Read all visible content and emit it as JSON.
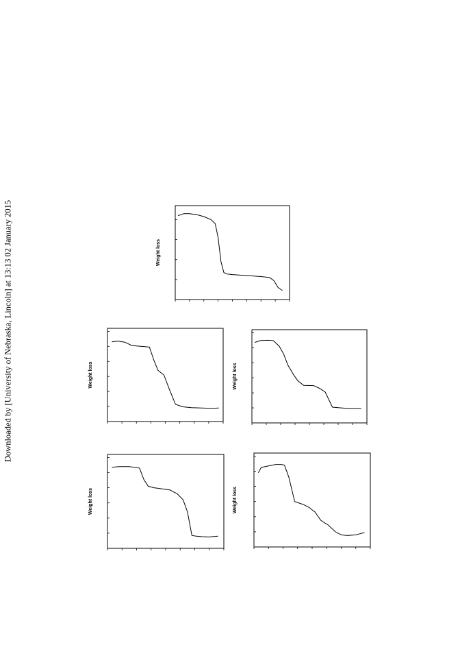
{
  "watermark": "Downloaded by [University of Nebraska, Lincoln] at 13:13 02 January 2015",
  "chart_data": [
    {
      "type": "line",
      "ylabel": "Weight loss",
      "xlabel": "",
      "xlim": [
        0,
        8
      ],
      "ylim": [
        0,
        4.7
      ],
      "x": [
        0.2,
        0.6,
        1.0,
        1.5,
        2.0,
        2.5,
        2.8,
        3.0,
        3.2,
        3.4,
        3.6,
        4.0,
        5.0,
        6.0,
        6.6,
        6.9,
        7.2,
        7.5
      ],
      "y": [
        4.2,
        4.3,
        4.3,
        4.25,
        4.15,
        4.0,
        3.8,
        3.1,
        1.9,
        1.35,
        1.28,
        1.25,
        1.2,
        1.15,
        1.1,
        0.95,
        0.6,
        0.45
      ]
    },
    {
      "type": "line",
      "ylabel": "Weight loss",
      "xlabel": "",
      "xlim": [
        0,
        8
      ],
      "ylim": [
        0,
        6.2
      ],
      "x": [
        0.3,
        0.7,
        1.2,
        1.7,
        2.3,
        2.9,
        3.2,
        3.5,
        3.9,
        4.3,
        4.7,
        5.2,
        5.8,
        6.5,
        7.2,
        7.7
      ],
      "y": [
        5.3,
        5.35,
        5.28,
        5.05,
        5.0,
        4.95,
        4.1,
        3.4,
        3.1,
        2.1,
        1.15,
        0.98,
        0.92,
        0.9,
        0.88,
        0.9
      ]
    },
    {
      "type": "line",
      "ylabel": "Weight loss",
      "xlabel": "",
      "xlim": [
        0,
        8
      ],
      "ylim": [
        0,
        6.2
      ],
      "x": [
        0.2,
        0.6,
        1.1,
        1.5,
        1.9,
        2.2,
        2.5,
        2.9,
        3.2,
        3.6,
        4.3,
        4.7,
        5.1,
        5.6,
        6.2,
        6.9,
        7.6
      ],
      "y": [
        5.35,
        5.48,
        5.5,
        5.47,
        5.1,
        4.6,
        3.85,
        3.2,
        2.8,
        2.5,
        2.48,
        2.3,
        2.05,
        1.05,
        1.0,
        0.95,
        0.97
      ]
    },
    {
      "type": "line",
      "ylabel": "Weight loss",
      "xlabel": "",
      "xlim": [
        0,
        8
      ],
      "ylim": [
        0,
        6.2
      ],
      "x": [
        0.3,
        0.8,
        1.5,
        2.2,
        2.5,
        2.8,
        3.2,
        3.6,
        4.3,
        4.8,
        5.2,
        5.5,
        5.8,
        6.1,
        6.5,
        7.0,
        7.6
      ],
      "y": [
        5.35,
        5.4,
        5.4,
        5.3,
        4.55,
        4.1,
        4.0,
        3.95,
        3.85,
        3.6,
        3.2,
        2.4,
        0.85,
        0.8,
        0.77,
        0.75,
        0.8
      ]
    },
    {
      "type": "line",
      "ylabel": "Weight loss",
      "xlabel": "",
      "xlim": [
        0,
        8
      ],
      "ylim": [
        0,
        6.2
      ],
      "x": [
        0.3,
        0.5,
        1.0,
        1.5,
        1.9,
        2.1,
        2.4,
        2.8,
        3.4,
        3.8,
        4.2,
        4.6,
        5.1,
        5.6,
        6.0,
        6.4,
        7.0,
        7.6
      ],
      "y": [
        4.9,
        5.25,
        5.35,
        5.45,
        5.45,
        5.4,
        4.6,
        3.0,
        2.8,
        2.6,
        2.3,
        1.75,
        1.45,
        1.0,
        0.8,
        0.75,
        0.8,
        0.95
      ]
    }
  ]
}
